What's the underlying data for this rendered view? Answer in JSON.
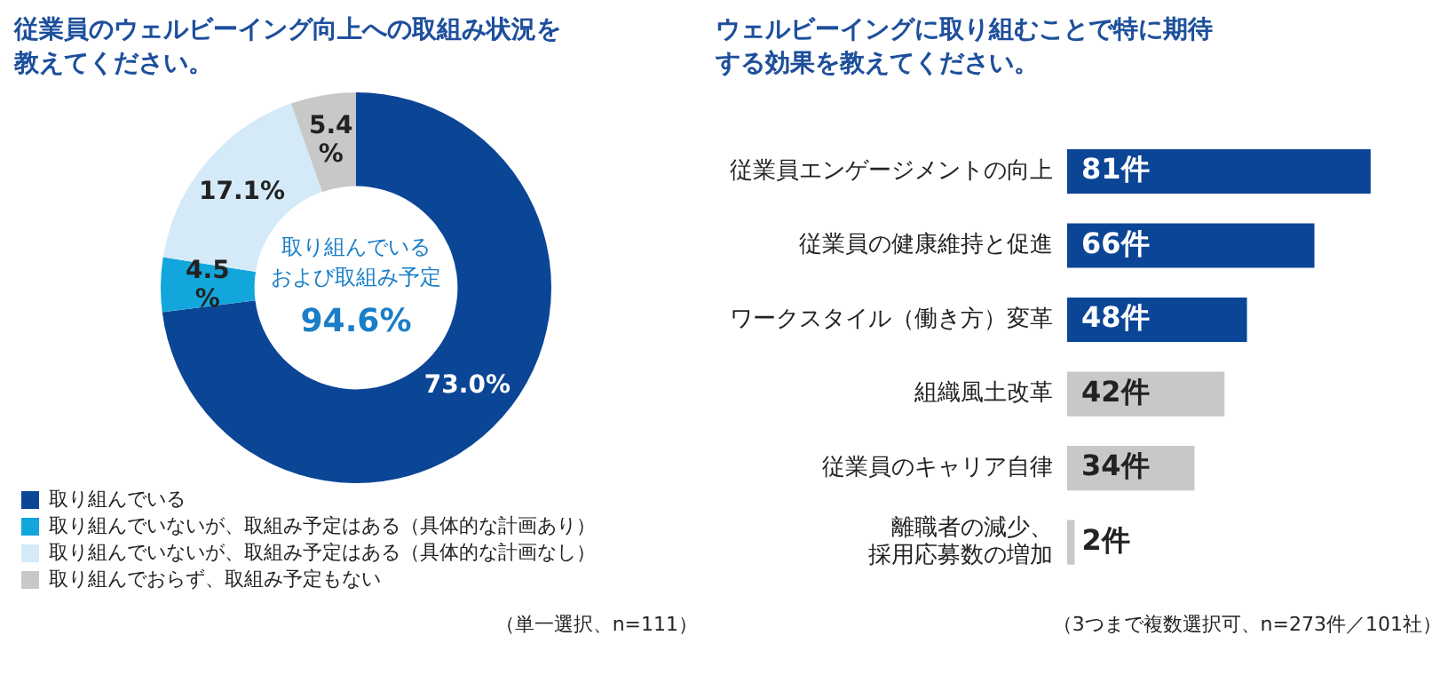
{
  "chart_data": [
    {
      "type": "donut",
      "title": "従業員のウェルビーイング向上への取組み状況を教えてください。",
      "categories": [
        "取り組んでいる",
        "取り組んでいないが、取組み予定はある（具体的な計画あり）",
        "取り組んでいないが、取組み予定はある（具体的な計画なし）",
        "取り組んでおらず、取組み予定もない"
      ],
      "values": [
        73.0,
        4.5,
        17.1,
        5.4
      ],
      "colors": [
        "#0b4596",
        "#12a6dc",
        "#d5eaf8",
        "#c8c8c8"
      ],
      "value_labels": [
        "73.0%",
        "4.5%",
        "17.1%",
        "5.4%"
      ],
      "annotations": [
        "取り組んでいる",
        "および取組み予定",
        "94.6%",
        "（単一選択、n=111）"
      ],
      "legend": "bottom"
    },
    {
      "type": "bar",
      "orientation": "horizontal",
      "title": "ウェルビーイングに取り組むことで特に期待する効果を教えてください。",
      "categories": [
        "従業員エンゲージメントの向上",
        "従業員の健康維持と促進",
        "ワークスタイル（働き方）変革",
        "組織風土改革",
        "従業員のキャリア自律",
        "離職者の減少、採用応募数の増加"
      ],
      "values": [
        81,
        66,
        48,
        42,
        34,
        2
      ],
      "colors": [
        "#0b4596",
        "#0b4596",
        "#0b4596",
        "#c8c8c8",
        "#c8c8c8",
        "#c8c8c8"
      ],
      "value_labels": [
        "81件",
        "66件",
        "48件",
        "42件",
        "34件",
        "2件"
      ],
      "tick_labels": "y",
      "annotations": [
        "（3つまで複数選択可、n=273件／101社）"
      ]
    }
  ]
}
